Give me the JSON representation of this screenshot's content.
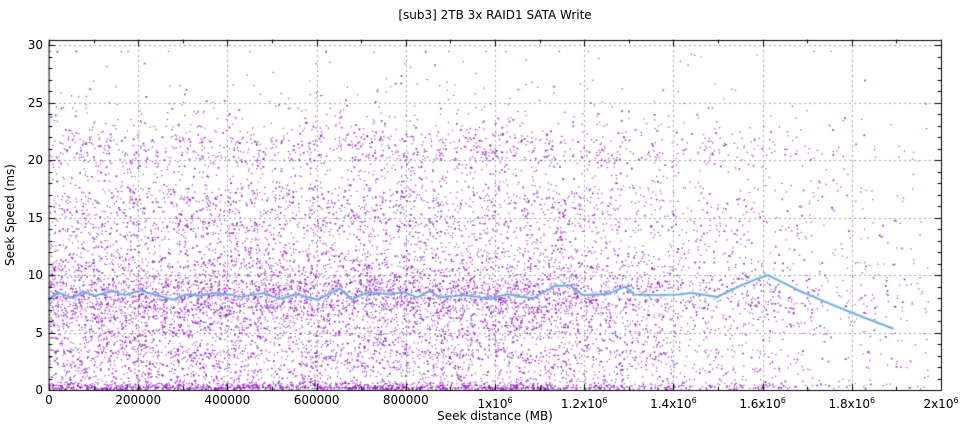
{
  "chart_data": {
    "type": "scatter",
    "title": "[sub3] 2TB 3x RAID1 SATA Write",
    "xlabel": "Seek distance (MB)",
    "ylabel": "Seek Speed (ms)",
    "xlim": [
      0,
      2000000
    ],
    "ylim": [
      0,
      30
    ],
    "grid": true,
    "legend": "none",
    "x_ticks": [
      {
        "value": 0,
        "label": "0"
      },
      {
        "value": 200000,
        "label": "200000"
      },
      {
        "value": 400000,
        "label": "400000"
      },
      {
        "value": 600000,
        "label": "600000"
      },
      {
        "value": 800000,
        "label": "800000"
      },
      {
        "value": 1000000,
        "label": "1x10^6"
      },
      {
        "value": 1200000,
        "label": "1.2x10^6"
      },
      {
        "value": 1400000,
        "label": "1.4x10^6"
      },
      {
        "value": 1600000,
        "label": "1.6x10^6"
      },
      {
        "value": 1800000,
        "label": "1.8x10^6"
      },
      {
        "value": 2000000,
        "label": "2x10^6"
      }
    ],
    "y_ticks": [
      {
        "value": 0,
        "label": "0"
      },
      {
        "value": 5,
        "label": "5"
      },
      {
        "value": 10,
        "label": "10"
      },
      {
        "value": 15,
        "label": "15"
      },
      {
        "value": 20,
        "label": "20"
      },
      {
        "value": 25,
        "label": "25"
      },
      {
        "value": 30,
        "label": "30"
      }
    ],
    "x_minor_step": 100000,
    "y_minor_step": 1,
    "colors": {
      "background": "#ffffff",
      "frame": "#000000",
      "grid": "#a6a6a6",
      "line_core": "#64a8d8",
      "line_halo": "rgba(150,200,235,0.55)",
      "scatter_palette": [
        "#c020c8",
        "#a30cc8",
        "#9400d3",
        "#8b07c4",
        "#7214b8",
        "#5c16ac"
      ]
    },
    "scatter": {
      "seed": 1337,
      "count": 12000,
      "x_max": 1970000,
      "x_density": [
        [
          0,
          1.0
        ],
        [
          1050000,
          1.0
        ],
        [
          1450000,
          0.38
        ],
        [
          1700000,
          0.22
        ],
        [
          1970000,
          0.06
        ]
      ],
      "y_mixture": [
        {
          "w": 0.3,
          "type": "gauss",
          "mean": 8.5,
          "sd": 1.5
        },
        {
          "w": 0.17,
          "type": "gauss",
          "mean": 5.2,
          "sd": 1.8
        },
        {
          "w": 0.1,
          "type": "uniform",
          "min": 0.15,
          "max": 3.6
        },
        {
          "w": 0.1,
          "type": "bottom",
          "base": 0.1,
          "scale": 0.28
        },
        {
          "w": 0.1,
          "type": "uniform",
          "min": 10.5,
          "max": 14.8
        },
        {
          "w": 0.07,
          "type": "gauss",
          "mean": 16.2,
          "sd": 1.1
        },
        {
          "w": 0.07,
          "type": "gauss",
          "mean": 20.6,
          "sd": 0.9
        },
        {
          "w": 0.045,
          "type": "uniform",
          "min": 13.5,
          "max": 19.5
        },
        {
          "w": 0.045,
          "type": "toptail",
          "min": 21.5,
          "lambda": 2.2,
          "max": 29.5
        }
      ]
    },
    "average_line": {
      "name": "moving-average",
      "points": [
        [
          0,
          7.9
        ],
        [
          20000,
          8.5
        ],
        [
          54000,
          8.0
        ],
        [
          76000,
          8.55
        ],
        [
          103000,
          8.2
        ],
        [
          141000,
          8.6
        ],
        [
          170000,
          8.25
        ],
        [
          204000,
          8.65
        ],
        [
          238000,
          8.3
        ],
        [
          278000,
          7.85
        ],
        [
          305000,
          8.3
        ],
        [
          339000,
          8.2
        ],
        [
          372000,
          8.45
        ],
        [
          405000,
          8.3
        ],
        [
          428000,
          8.1
        ],
        [
          480000,
          8.43
        ],
        [
          518000,
          7.93
        ],
        [
          556000,
          8.34
        ],
        [
          601000,
          7.85
        ],
        [
          646000,
          8.72
        ],
        [
          652000,
          8.83
        ],
        [
          679000,
          7.9
        ],
        [
          713000,
          8.48
        ],
        [
          765000,
          8.34
        ],
        [
          794000,
          8.54
        ],
        [
          825000,
          8.05
        ],
        [
          854000,
          8.63
        ],
        [
          877000,
          8.05
        ],
        [
          930000,
          8.25
        ],
        [
          989000,
          7.93
        ],
        [
          1027000,
          8.34
        ],
        [
          1085000,
          7.96
        ],
        [
          1134000,
          9.05
        ],
        [
          1168000,
          9.1
        ],
        [
          1197000,
          8.25
        ],
        [
          1252000,
          8.35
        ],
        [
          1292000,
          9.0
        ],
        [
          1312000,
          8.3
        ],
        [
          1362000,
          8.25
        ],
        [
          1412000,
          8.3
        ],
        [
          1440000,
          8.45
        ],
        [
          1498000,
          8.1
        ],
        [
          1549000,
          9.05
        ],
        [
          1583000,
          9.6
        ],
        [
          1612000,
          10.0
        ],
        [
          1684000,
          8.6
        ],
        [
          1751000,
          7.5
        ],
        [
          1818000,
          6.45
        ],
        [
          1892000,
          5.35
        ]
      ]
    }
  }
}
